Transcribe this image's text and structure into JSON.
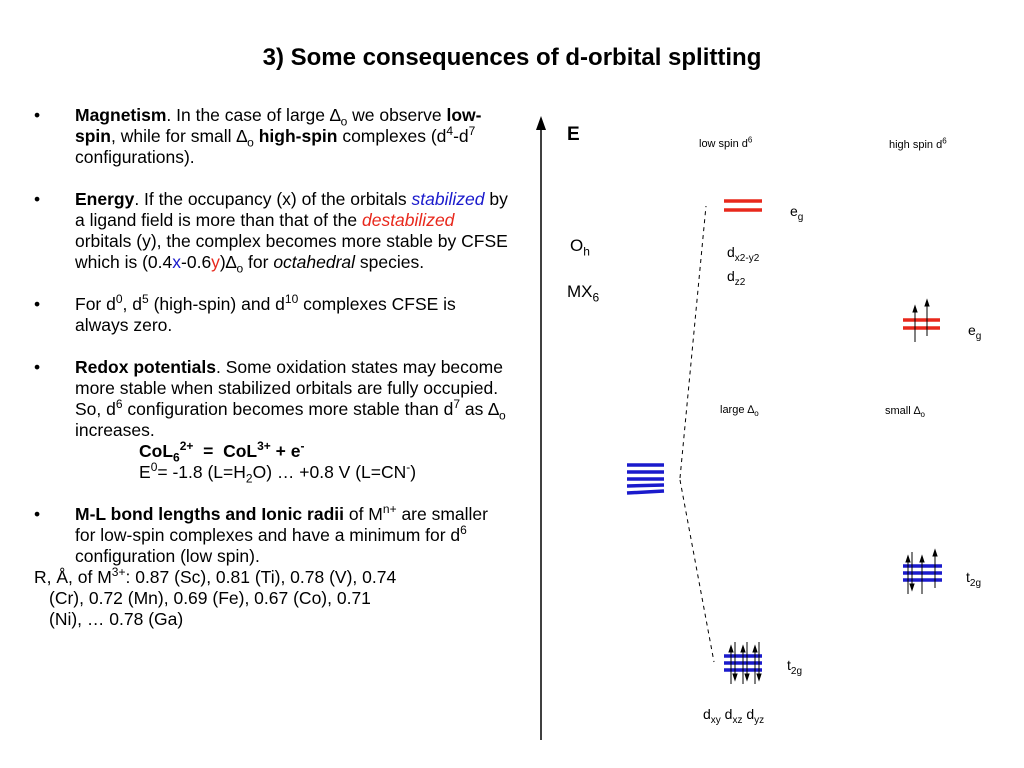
{
  "title": "3) Some consequences of d-orbital splitting",
  "bullet_glyph": "•",
  "bullets": {
    "magnetism": {
      "head": "Magnetism",
      "t1": ". In the case of large ",
      "delta": "∆",
      "sub_o": "o",
      "t2": " we observe ",
      "low_spin": "low-spin",
      "t3": ", while for small ",
      "high_spin": "high-spin",
      "t4": " complexes (d",
      "sup4": "4",
      "t5": "-d",
      "sup7": "7",
      "t6": " configurations)."
    },
    "energy": {
      "head": "Energy",
      "t1": ". If the occupancy (x) of the orbitals ",
      "stabilized": "stabilized",
      "t2": " by a ligand field is more than that of the ",
      "destabilized": "destabilized",
      "t3": " orbitals (y), the complex becomes more stable by CFSE which is (0.4",
      "x": "x",
      "t4": "-0.6",
      "y": "y",
      "t5": ")",
      "t6": " for ",
      "octahedral": "octahedral",
      "t7": " species."
    },
    "cfse": {
      "t1": "For d",
      "sup0": "0",
      "t2": ", d",
      "sup5": "5",
      "t3": " (high-spin) and d",
      "sup10": "10",
      "t4": " complexes CFSE is always zero."
    },
    "redox": {
      "head": "Redox potentials",
      "t1": ". Some oxidation states may become more stable when stabilized orbitals are fully occupied. So, d",
      "sup6": "6",
      "t2": " configuration becomes more stable than d",
      "sup7": "7",
      "t3": " as ",
      "t4": " increases.",
      "eq1_a": "CoL",
      "eq1_sub6": "6",
      "eq1_sup2": "2+",
      "eq1_b": "  =  CoL",
      "eq1_sup3": "3+",
      "eq1_c": " + e",
      "eq1_supm": "-",
      "eq2_a": "E",
      "eq2_sup0": "0",
      "eq2_b": "= -1.8 (L=H",
      "eq2_sub2": "2",
      "eq2_c": "O) … +0.8 V (L=CN",
      "eq2_supm": "-",
      "eq2_d": ")"
    },
    "bonds": {
      "head": "M-L bond lengths and Ionic radii",
      "t1": " of M",
      "supn": "n+",
      "t2": " are smaller for low-spin complexes and have a minimum for d",
      "sup6": "6",
      "t3": " configuration (low spin)."
    }
  },
  "tail": {
    "t1": "R, Å, of M",
    "sup3": "3+",
    "t2": ": 0.87 (Sc), 0.81 (Ti), 0.78 (V), 0.74",
    "t3": "(Cr), 0.72 (Mn), 0.69 (Fe), 0.67 (Co), 0.71",
    "t4": "(Ni), … 0.78 (Ga)"
  },
  "diagram": {
    "energy_label": "E",
    "oh_main": "O",
    "oh_sub": "h",
    "mx_main": "MX",
    "mx_sub": "6",
    "low_spin_a": "low spin d",
    "low_spin_sup": "6",
    "high_spin_a": "high spin d",
    "high_spin_sup": "6",
    "eg_main": "e",
    "eg_sub": "g",
    "dx2_main": "d",
    "dx2_sub": "x2-y2",
    "dz2_main": "d",
    "dz2_sub": "z2",
    "large_a": "large ",
    "small_a": "small ",
    "delta": "∆",
    "delta_sub": "o",
    "t2g_main": "t",
    "t2g_sub": "2g",
    "dxy": "d",
    "dxy_sub": "xy",
    "dxz": " d",
    "dxz_sub": "xz",
    "dyz": " d",
    "dyz_sub": "yz"
  },
  "colors": {
    "eg_lines": "#e8281c",
    "t2g_lines": "#1a1acc",
    "text": "#000000"
  }
}
